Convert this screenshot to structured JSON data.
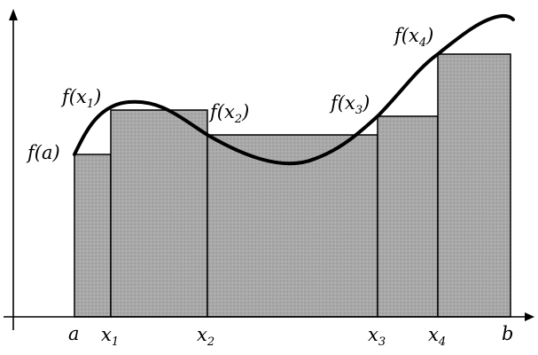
{
  "figure": {
    "type": "riemann-sum-illustration",
    "curve_label": "f",
    "bar_fill": "#a9a9a9",
    "curve_color": "#000000",
    "axis_color": "#000000",
    "x_points": [
      {
        "id": "a",
        "main": "a",
        "sub": ""
      },
      {
        "id": "x1",
        "main": "x",
        "sub": "1"
      },
      {
        "id": "x2",
        "main": "x",
        "sub": "2"
      },
      {
        "id": "x3",
        "main": "x",
        "sub": "3"
      },
      {
        "id": "x4",
        "main": "x",
        "sub": "4"
      },
      {
        "id": "b",
        "main": "b",
        "sub": ""
      }
    ],
    "function_labels": [
      {
        "id": "fa",
        "prefix": "f(",
        "main": "a",
        "sub": "",
        "suffix": ")"
      },
      {
        "id": "fx1",
        "prefix": "f(",
        "main": "x",
        "sub": "1",
        "suffix": ")"
      },
      {
        "id": "fx2",
        "prefix": "f(",
        "main": "x",
        "sub": "2",
        "suffix": ")"
      },
      {
        "id": "fx3",
        "prefix": "f(",
        "main": "x",
        "sub": "3",
        "suffix": ")"
      },
      {
        "id": "fx4",
        "prefix": "f(",
        "main": "x",
        "sub": "4",
        "suffix": ")"
      }
    ]
  }
}
